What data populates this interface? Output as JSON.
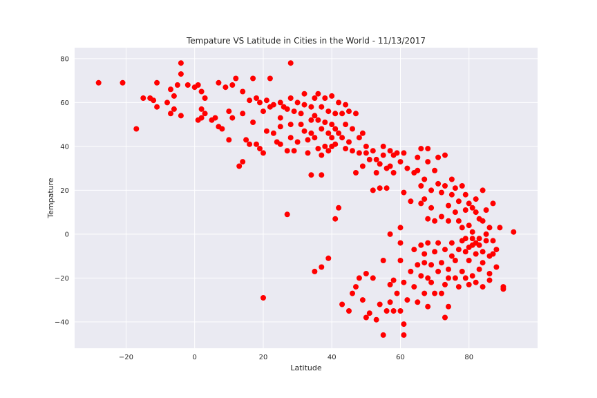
{
  "chart_data": {
    "type": "scatter",
    "title": "Tempature VS Latitude in Cities in the World - 11/13/2017",
    "xlabel": "Latitude",
    "ylabel": "Tempature",
    "xlim": [
      -35,
      100
    ],
    "ylim": [
      -52,
      85
    ],
    "xticks": [
      -20,
      0,
      20,
      40,
      60,
      80
    ],
    "yticks": [
      -40,
      -20,
      0,
      20,
      40,
      60,
      80
    ],
    "grid": true,
    "colors": {
      "plot_bg": "#EAEAF2",
      "grid": "#FFFFFF",
      "marker": "#FF0000"
    },
    "series": [
      {
        "points": [
          [
            -28,
            69
          ],
          [
            -21,
            69
          ],
          [
            -17,
            48
          ],
          [
            -15,
            62
          ],
          [
            -13,
            62
          ],
          [
            -12,
            61
          ],
          [
            -11,
            58
          ],
          [
            -11,
            69
          ],
          [
            -8,
            60
          ],
          [
            -7,
            66
          ],
          [
            -7,
            55
          ],
          [
            -6,
            63
          ],
          [
            -6,
            57
          ],
          [
            -5,
            68
          ],
          [
            -4,
            54
          ],
          [
            -4,
            78
          ],
          [
            -4,
            73
          ],
          [
            -2,
            68
          ],
          [
            0,
            67
          ],
          [
            1,
            68
          ],
          [
            1,
            52
          ],
          [
            2,
            65
          ],
          [
            2,
            57
          ],
          [
            2,
            53
          ],
          [
            3,
            62
          ],
          [
            3,
            55
          ],
          [
            5,
            52
          ],
          [
            6,
            53
          ],
          [
            7,
            69
          ],
          [
            7,
            49
          ],
          [
            8,
            48
          ],
          [
            9,
            67
          ],
          [
            10,
            56
          ],
          [
            10,
            43
          ],
          [
            11,
            68
          ],
          [
            11,
            53
          ],
          [
            12,
            71
          ],
          [
            13,
            31
          ],
          [
            14,
            33
          ],
          [
            14,
            65
          ],
          [
            14,
            55
          ],
          [
            15,
            43
          ],
          [
            16,
            61
          ],
          [
            16,
            41
          ],
          [
            17,
            51
          ],
          [
            17,
            71
          ],
          [
            18,
            62
          ],
          [
            18,
            41
          ],
          [
            19,
            60
          ],
          [
            19,
            39
          ],
          [
            20,
            56
          ],
          [
            20,
            37
          ],
          [
            21,
            61
          ],
          [
            21,
            47
          ],
          [
            22,
            58
          ],
          [
            22,
            71
          ],
          [
            23,
            59
          ],
          [
            23,
            46
          ],
          [
            24,
            42
          ],
          [
            25,
            60
          ],
          [
            25,
            53
          ],
          [
            25,
            49
          ],
          [
            25,
            41
          ],
          [
            26,
            58
          ],
          [
            27,
            57
          ],
          [
            27,
            38
          ],
          [
            28,
            62
          ],
          [
            28,
            50
          ],
          [
            28,
            78
          ],
          [
            28,
            44
          ],
          [
            29,
            56
          ],
          [
            29,
            38
          ],
          [
            30,
            60
          ],
          [
            30,
            42
          ],
          [
            31,
            55
          ],
          [
            31,
            50
          ],
          [
            32,
            64
          ],
          [
            32,
            59
          ],
          [
            32,
            47
          ],
          [
            33,
            43
          ],
          [
            33,
            37
          ],
          [
            34,
            58
          ],
          [
            34,
            52
          ],
          [
            34,
            46
          ],
          [
            34,
            27
          ],
          [
            35,
            62
          ],
          [
            35,
            54
          ],
          [
            35,
            44
          ],
          [
            36,
            64
          ],
          [
            36,
            52
          ],
          [
            36,
            39
          ],
          [
            37,
            58
          ],
          [
            37,
            48
          ],
          [
            37,
            36
          ],
          [
            37,
            27
          ],
          [
            38,
            62
          ],
          [
            38,
            51
          ],
          [
            38,
            40
          ],
          [
            39,
            56
          ],
          [
            39,
            46
          ],
          [
            39,
            38
          ],
          [
            40,
            63
          ],
          [
            40,
            50
          ],
          [
            40,
            44
          ],
          [
            40,
            40
          ],
          [
            41,
            55
          ],
          [
            41,
            48
          ],
          [
            41,
            41
          ],
          [
            42,
            60
          ],
          [
            42,
            46
          ],
          [
            43,
            55
          ],
          [
            43,
            44
          ],
          [
            44,
            59
          ],
          [
            44,
            50
          ],
          [
            44,
            39
          ],
          [
            45,
            56
          ],
          [
            45,
            42
          ],
          [
            46,
            48
          ],
          [
            46,
            38
          ],
          [
            47,
            55
          ],
          [
            47,
            28
          ],
          [
            48,
            44
          ],
          [
            48,
            37
          ],
          [
            49,
            46
          ],
          [
            49,
            31
          ],
          [
            50,
            40
          ],
          [
            50,
            37
          ],
          [
            51,
            34
          ],
          [
            52,
            38
          ],
          [
            52,
            20
          ],
          [
            53,
            34
          ],
          [
            53,
            28
          ],
          [
            54,
            21
          ],
          [
            54,
            32
          ],
          [
            55,
            40
          ],
          [
            55,
            36
          ],
          [
            56,
            30
          ],
          [
            56,
            21
          ],
          [
            57,
            38
          ],
          [
            57,
            31
          ],
          [
            58,
            36
          ],
          [
            58,
            28
          ],
          [
            59,
            37
          ],
          [
            60,
            33
          ],
          [
            61,
            37
          ],
          [
            61,
            19
          ],
          [
            62,
            30
          ],
          [
            63,
            15
          ],
          [
            64,
            28
          ],
          [
            65,
            35
          ],
          [
            65,
            29
          ],
          [
            66,
            39
          ],
          [
            66,
            22
          ],
          [
            66,
            14
          ],
          [
            67,
            25
          ],
          [
            67,
            16
          ],
          [
            68,
            33
          ],
          [
            68,
            7
          ],
          [
            68,
            39
          ],
          [
            69,
            20
          ],
          [
            69,
            12
          ],
          [
            70,
            29
          ],
          [
            70,
            6
          ],
          [
            71,
            35
          ],
          [
            71,
            23
          ],
          [
            72,
            19
          ],
          [
            72,
            8
          ],
          [
            73,
            36
          ],
          [
            73,
            22
          ],
          [
            74,
            13
          ],
          [
            74,
            6
          ],
          [
            75,
            25
          ],
          [
            75,
            18
          ],
          [
            76,
            10
          ],
          [
            76,
            21
          ],
          [
            77,
            15
          ],
          [
            77,
            6
          ],
          [
            78,
            22
          ],
          [
            78,
            3
          ],
          [
            79,
            18
          ],
          [
            79,
            11
          ],
          [
            79,
            -2
          ],
          [
            80,
            14
          ],
          [
            80,
            4
          ],
          [
            80,
            -6
          ],
          [
            81,
            12
          ],
          [
            81,
            1
          ],
          [
            81,
            -2
          ],
          [
            82,
            16
          ],
          [
            82,
            10
          ],
          [
            82,
            -4
          ],
          [
            83,
            7
          ],
          [
            83,
            -5
          ],
          [
            84,
            20
          ],
          [
            84,
            6
          ],
          [
            84,
            -8
          ],
          [
            85,
            11
          ],
          [
            85,
            0
          ],
          [
            86,
            3
          ],
          [
            86,
            -10
          ],
          [
            86,
            -21
          ],
          [
            87,
            14
          ],
          [
            87,
            -3
          ],
          [
            88,
            -7
          ],
          [
            88,
            -15
          ],
          [
            89,
            3
          ],
          [
            90,
            -24
          ],
          [
            90,
            -25
          ],
          [
            93,
            1
          ],
          [
            20,
            -29
          ],
          [
            27,
            9
          ],
          [
            35,
            -17
          ],
          [
            37,
            -15
          ],
          [
            39,
            -11
          ],
          [
            41,
            7
          ],
          [
            42,
            12
          ],
          [
            43,
            -32
          ],
          [
            45,
            -35
          ],
          [
            46,
            -27
          ],
          [
            47,
            -24
          ],
          [
            48,
            -20
          ],
          [
            49,
            -30
          ],
          [
            50,
            -38
          ],
          [
            50,
            -18
          ],
          [
            51,
            -36
          ],
          [
            52,
            -20
          ],
          [
            53,
            -39
          ],
          [
            54,
            -32
          ],
          [
            55,
            -46
          ],
          [
            55,
            -12
          ],
          [
            56,
            -35
          ],
          [
            57,
            -23
          ],
          [
            57,
            -31
          ],
          [
            57,
            0
          ],
          [
            58,
            -35
          ],
          [
            58,
            -21
          ],
          [
            59,
            -27
          ],
          [
            60,
            -35
          ],
          [
            60,
            -12
          ],
          [
            60,
            -4
          ],
          [
            60,
            3
          ],
          [
            61,
            -41
          ],
          [
            61,
            -46
          ],
          [
            61,
            -22
          ],
          [
            62,
            -30
          ],
          [
            63,
            -17
          ],
          [
            64,
            -24
          ],
          [
            64,
            -7
          ],
          [
            65,
            -14
          ],
          [
            65,
            -31
          ],
          [
            66,
            -19
          ],
          [
            66,
            -5
          ],
          [
            67,
            -27
          ],
          [
            67,
            -13
          ],
          [
            67,
            -9
          ],
          [
            68,
            -33
          ],
          [
            68,
            -20
          ],
          [
            68,
            -4
          ],
          [
            69,
            -22
          ],
          [
            69,
            -14
          ],
          [
            70,
            -27
          ],
          [
            70,
            -8
          ],
          [
            71,
            -17
          ],
          [
            71,
            -4
          ],
          [
            72,
            -27
          ],
          [
            72,
            -13
          ],
          [
            73,
            -38
          ],
          [
            73,
            -23
          ],
          [
            73,
            -7
          ],
          [
            74,
            -33
          ],
          [
            74,
            -16
          ],
          [
            74,
            -20
          ],
          [
            75,
            -10
          ],
          [
            75,
            -4
          ],
          [
            76,
            -20
          ],
          [
            76,
            -12
          ],
          [
            77,
            -7
          ],
          [
            77,
            -24
          ],
          [
            78,
            -17
          ],
          [
            78,
            -3
          ],
          [
            79,
            -20
          ],
          [
            79,
            -8
          ],
          [
            80,
            -23
          ],
          [
            80,
            -12
          ],
          [
            81,
            -19
          ],
          [
            81,
            -5
          ],
          [
            82,
            -22
          ],
          [
            82,
            -9
          ],
          [
            83,
            -16
          ],
          [
            83,
            -2
          ],
          [
            84,
            -24
          ],
          [
            84,
            -13
          ],
          [
            85,
            -3
          ],
          [
            86,
            -18
          ],
          [
            87,
            -9
          ]
        ]
      }
    ]
  }
}
